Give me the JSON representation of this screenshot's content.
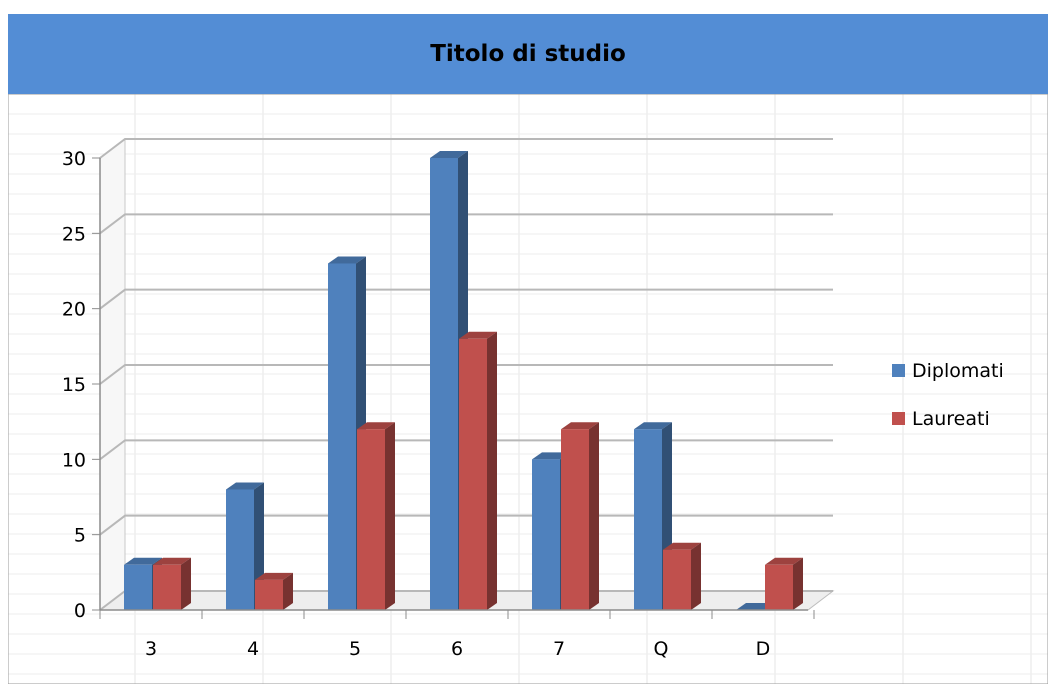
{
  "chart_data": {
    "type": "bar",
    "title": "Titolo di studio",
    "categories": [
      "3",
      "4",
      "5",
      "6",
      "7",
      "Q",
      "D"
    ],
    "series": [
      {
        "name": "Diplomati",
        "values": [
          3,
          8,
          23,
          30,
          10,
          12,
          0
        ],
        "color": "#4f81bd"
      },
      {
        "name": "Laureati",
        "values": [
          3,
          2,
          12,
          18,
          12,
          4,
          3
        ],
        "color": "#c0504d"
      }
    ],
    "ylim": [
      0,
      30
    ],
    "yticks": [
      0,
      5,
      10,
      15,
      20,
      25,
      30
    ],
    "grid": true,
    "legend": "right",
    "header_color": "#538dd5"
  }
}
